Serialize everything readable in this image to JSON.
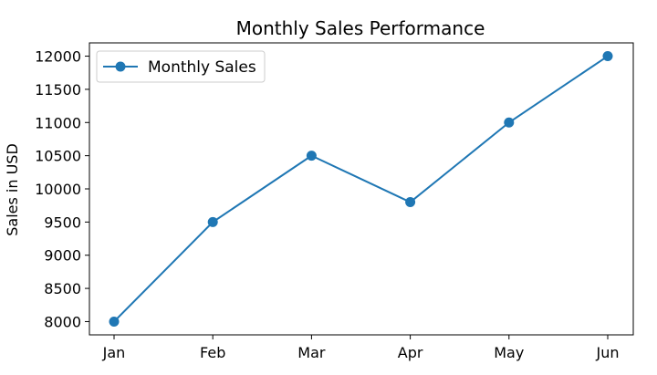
{
  "chart_data": {
    "type": "line",
    "title": "Monthly Sales Performance",
    "xlabel": "",
    "ylabel": "Sales in USD",
    "categories": [
      "Jan",
      "Feb",
      "Mar",
      "Apr",
      "May",
      "Jun"
    ],
    "series": [
      {
        "name": "Monthly Sales",
        "values": [
          8000,
          9500,
          10500,
          9800,
          11000,
          12000
        ],
        "color": "#1f77b4",
        "marker": "circle"
      }
    ],
    "ylim": [
      7800,
      12200
    ],
    "yticks": [
      8000,
      8500,
      9000,
      9500,
      10000,
      10500,
      11000,
      11500,
      12000
    ],
    "legend": {
      "placement": "upper-left"
    },
    "grid": false
  }
}
